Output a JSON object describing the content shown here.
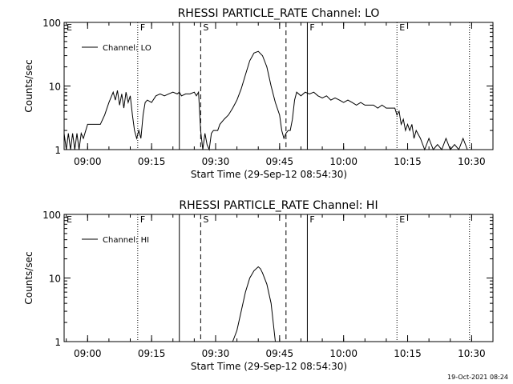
{
  "footer_timestamp": "19-Oct-2021 08:24",
  "line_style_legend": {
    "solid": "F",
    "dashed": "S",
    "dotted": "E"
  },
  "chart_data": [
    {
      "type": "line",
      "title": "RHESSI PARTICLE_RATE Channel: LO",
      "xlabel": "Start Time (29-Sep-12 08:54:30)",
      "ylabel": "Counts/sec",
      "yscale": "log",
      "ylim": [
        1,
        100
      ],
      "xlim": [
        "08:54:30",
        "10:35:00"
      ],
      "x_ticks": [
        "09:00",
        "09:15",
        "09:30",
        "09:45",
        "10:00",
        "10:15",
        "10:30"
      ],
      "y_ticks": [
        "1",
        "10",
        "100"
      ],
      "legend": {
        "position": "top-left",
        "entries": [
          "Channel: LO"
        ]
      },
      "markers": [
        {
          "label": "E",
          "time": "08:54:30",
          "style": "dotted"
        },
        {
          "label": "F",
          "time": "09:11:45",
          "style": "dotted"
        },
        {
          "label": "",
          "time": "09:21:30",
          "style": "solid"
        },
        {
          "label": "S",
          "time": "09:26:30",
          "style": "dashed"
        },
        {
          "label": "",
          "time": "09:46:30",
          "style": "dashed"
        },
        {
          "label": "F",
          "time": "09:51:30",
          "style": "solid"
        },
        {
          "label": "E",
          "time": "10:12:30",
          "style": "dotted"
        },
        {
          "label": "",
          "time": "10:29:30",
          "style": "dotted"
        }
      ],
      "series": [
        {
          "name": "Channel: LO",
          "x": [
            "08:54:30",
            "08:55:00",
            "08:55:30",
            "08:56:00",
            "08:56:30",
            "08:57:00",
            "08:57:30",
            "08:58:00",
            "08:58:30",
            "08:59:00",
            "09:00:00",
            "09:01:00",
            "09:02:00",
            "09:03:00",
            "09:04:00",
            "09:05:00",
            "09:06:00",
            "09:06:30",
            "09:07:00",
            "09:07:30",
            "09:08:00",
            "09:08:30",
            "09:09:00",
            "09:09:30",
            "09:10:00",
            "09:10:30",
            "09:11:00",
            "09:11:30",
            "09:12:00",
            "09:12:30",
            "09:13:00",
            "09:13:30",
            "09:14:00",
            "09:15:00",
            "09:16:00",
            "09:17:00",
            "09:18:00",
            "09:19:00",
            "09:20:00",
            "09:21:00",
            "09:21:30",
            "09:22:00",
            "09:23:00",
            "09:24:00",
            "09:25:00",
            "09:25:30",
            "09:26:00",
            "09:26:30",
            "09:27:00",
            "09:27:30",
            "09:28:00",
            "09:28:30",
            "09:29:00",
            "09:29:30",
            "09:30:00",
            "09:30:30",
            "09:31:00",
            "09:32:00",
            "09:33:00",
            "09:34:00",
            "09:35:00",
            "09:36:00",
            "09:37:00",
            "09:38:00",
            "09:39:00",
            "09:40:00",
            "09:41:00",
            "09:42:00",
            "09:43:00",
            "09:44:00",
            "09:45:00",
            "09:45:30",
            "09:46:00",
            "09:46:30",
            "09:47:00",
            "09:47:30",
            "09:48:00",
            "09:48:30",
            "09:49:00",
            "09:50:00",
            "09:51:00",
            "09:52:00",
            "09:53:00",
            "09:54:00",
            "09:55:00",
            "09:56:00",
            "09:57:00",
            "09:58:00",
            "09:59:00",
            "10:00:00",
            "10:01:00",
            "10:02:00",
            "10:03:00",
            "10:04:00",
            "10:05:00",
            "10:06:00",
            "10:07:00",
            "10:08:00",
            "10:09:00",
            "10:10:00",
            "10:11:00",
            "10:12:00",
            "10:12:30",
            "10:13:00",
            "10:13:30",
            "10:14:00",
            "10:14:30",
            "10:15:00",
            "10:15:30",
            "10:16:00",
            "10:16:30",
            "10:17:00",
            "10:18:00",
            "10:19:00",
            "10:20:00",
            "10:21:00",
            "10:22:00",
            "10:23:00",
            "10:24:00",
            "10:25:00",
            "10:26:00",
            "10:27:00",
            "10:28:00",
            "10:29:00",
            "10:30:00"
          ],
          "y": [
            1.8,
            1.0,
            1.8,
            1.0,
            1.8,
            1.0,
            1.8,
            1.0,
            1.8,
            1.5,
            2.5,
            2.5,
            2.5,
            2.5,
            3.5,
            5.5,
            8.0,
            6.0,
            8.5,
            5.0,
            7.5,
            4.5,
            8.0,
            5.5,
            7.0,
            3.5,
            2.0,
            1.5,
            2.0,
            1.5,
            3.5,
            5.5,
            6.0,
            5.5,
            7.0,
            7.5,
            7.0,
            7.5,
            8.0,
            7.5,
            8.0,
            7.0,
            7.5,
            7.5,
            8.0,
            7.0,
            8.0,
            2.0,
            1.0,
            1.8,
            1.2,
            1.0,
            1.8,
            2.0,
            2.0,
            2.0,
            2.5,
            3.0,
            3.5,
            4.5,
            6.0,
            9.0,
            15.0,
            25.0,
            33.0,
            35.0,
            30.0,
            20.0,
            10.0,
            5.5,
            3.5,
            2.0,
            1.5,
            1.8,
            2.0,
            2.0,
            3.0,
            6.0,
            8.0,
            7.0,
            8.0,
            7.5,
            8.0,
            7.0,
            6.5,
            7.0,
            6.0,
            6.5,
            6.0,
            5.5,
            6.0,
            5.5,
            5.0,
            5.5,
            5.0,
            5.0,
            5.0,
            4.5,
            5.0,
            4.5,
            4.5,
            4.5,
            3.5,
            4.0,
            2.5,
            3.0,
            2.0,
            2.5,
            2.0,
            2.5,
            1.5,
            2.0,
            1.5,
            1.0,
            1.5,
            1.0,
            1.2,
            1.0,
            1.5,
            1.0,
            1.2,
            1.0,
            1.5,
            1.0,
            1.0
          ]
        }
      ]
    },
    {
      "type": "line",
      "title": "RHESSI PARTICLE_RATE Channel: HI",
      "xlabel": "Start Time (29-Sep-12 08:54:30)",
      "ylabel": "Counts/sec",
      "yscale": "log",
      "ylim": [
        1,
        100
      ],
      "xlim": [
        "08:54:30",
        "10:35:00"
      ],
      "x_ticks": [
        "09:00",
        "09:15",
        "09:30",
        "09:45",
        "10:00",
        "10:15",
        "10:30"
      ],
      "y_ticks": [
        "1",
        "10",
        "100"
      ],
      "legend": {
        "position": "top-left",
        "entries": [
          "Channel: HI"
        ]
      },
      "markers": [
        {
          "label": "E",
          "time": "08:54:30",
          "style": "dotted"
        },
        {
          "label": "F",
          "time": "09:11:45",
          "style": "dotted"
        },
        {
          "label": "",
          "time": "09:21:30",
          "style": "solid"
        },
        {
          "label": "S",
          "time": "09:26:30",
          "style": "dashed"
        },
        {
          "label": "",
          "time": "09:46:30",
          "style": "dashed"
        },
        {
          "label": "F",
          "time": "09:51:30",
          "style": "solid"
        },
        {
          "label": "E",
          "time": "10:12:30",
          "style": "dotted"
        },
        {
          "label": "",
          "time": "10:29:30",
          "style": "dotted"
        }
      ],
      "series": [
        {
          "name": "Channel: HI",
          "x": [
            "09:34:00",
            "09:35:00",
            "09:36:00",
            "09:37:00",
            "09:38:00",
            "09:39:00",
            "09:40:00",
            "09:40:30",
            "09:41:00",
            "09:42:00",
            "09:43:00",
            "09:44:00"
          ],
          "y": [
            1.0,
            1.5,
            3.0,
            6.0,
            10.0,
            13.0,
            15.0,
            14.0,
            12.0,
            8.0,
            4.0,
            1.0
          ]
        }
      ]
    }
  ]
}
